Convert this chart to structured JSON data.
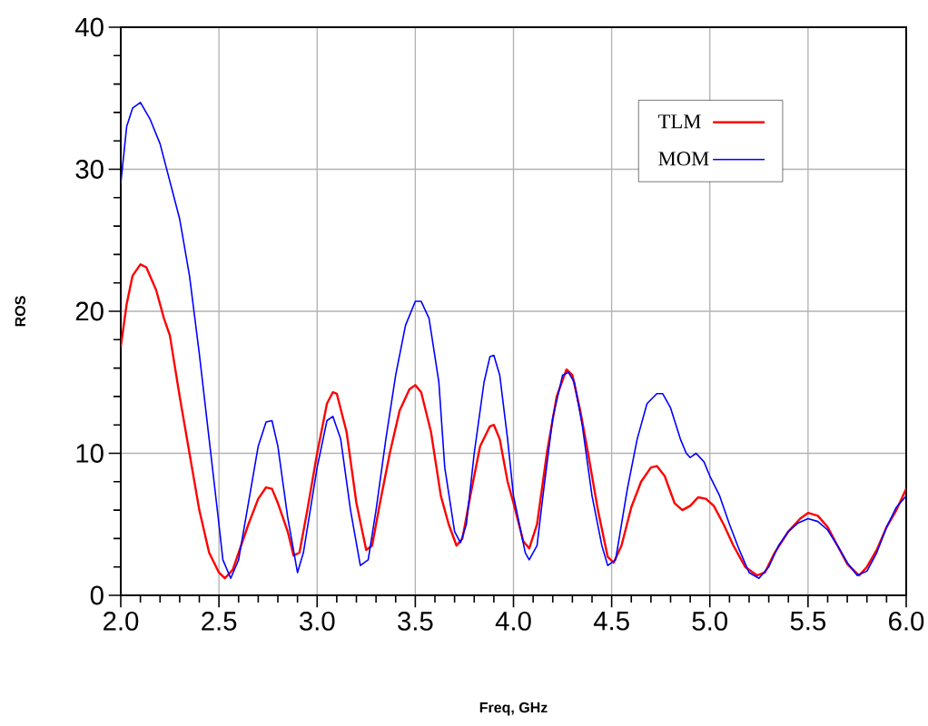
{
  "chart_data": {
    "type": "line",
    "xlabel": "Freq, GHz",
    "ylabel": "ROS",
    "xlim": [
      2.0,
      6.0
    ],
    "ylim": [
      0,
      40
    ],
    "xticks": [
      {
        "value": 2.0,
        "label": "2.0"
      },
      {
        "value": 2.5,
        "label": "2.5"
      },
      {
        "value": 3.0,
        "label": "3.0"
      },
      {
        "value": 3.5,
        "label": "3.5"
      },
      {
        "value": 4.0,
        "label": "4.0"
      },
      {
        "value": 4.5,
        "label": "4.5"
      },
      {
        "value": 5.0,
        "label": "5.0"
      },
      {
        "value": 5.5,
        "label": "5.5"
      },
      {
        "value": 6.0,
        "label": "6.0"
      }
    ],
    "yticks": [
      0,
      10,
      20,
      30,
      40
    ],
    "grid": true,
    "legend": "top right",
    "marker": "none",
    "line_style": "solid",
    "series": [
      {
        "name": "TLM",
        "color": "#ff0000",
        "x": [
          2.0,
          2.03,
          2.06,
          2.1,
          2.13,
          2.18,
          2.22,
          2.25,
          2.3,
          2.35,
          2.4,
          2.45,
          2.5,
          2.53,
          2.57,
          2.6,
          2.65,
          2.7,
          2.74,
          2.77,
          2.8,
          2.85,
          2.88,
          2.91,
          2.95,
          3.0,
          3.05,
          3.08,
          3.1,
          3.15,
          3.2,
          3.25,
          3.28,
          3.32,
          3.37,
          3.42,
          3.47,
          3.5,
          3.53,
          3.58,
          3.63,
          3.67,
          3.71,
          3.74,
          3.78,
          3.83,
          3.88,
          3.9,
          3.93,
          3.97,
          4.0,
          4.05,
          4.08,
          4.12,
          4.17,
          4.22,
          4.27,
          4.3,
          4.34,
          4.38,
          4.43,
          4.48,
          4.51,
          4.55,
          4.6,
          4.65,
          4.7,
          4.73,
          4.77,
          4.82,
          4.86,
          4.9,
          4.94,
          4.98,
          5.02,
          5.07,
          5.12,
          5.18,
          5.24,
          5.28,
          5.33,
          5.4,
          5.46,
          5.5,
          5.55,
          5.6,
          5.65,
          5.7,
          5.76,
          5.8,
          5.85,
          5.9,
          5.95,
          6.0
        ],
        "values": [
          17.5,
          20.5,
          22.5,
          23.3,
          23.1,
          21.5,
          19.5,
          18.3,
          14,
          10,
          6,
          3,
          1.6,
          1.2,
          1.8,
          3,
          5,
          6.8,
          7.6,
          7.5,
          6.5,
          4.5,
          2.8,
          3,
          6,
          10,
          13.5,
          14.3,
          14.2,
          11.5,
          6.5,
          3.2,
          3.5,
          6.5,
          10,
          13,
          14.5,
          14.8,
          14.3,
          11.5,
          7,
          5,
          3.5,
          4,
          7,
          10.5,
          11.9,
          12,
          11,
          8,
          6.5,
          3.8,
          3.3,
          5,
          10,
          14,
          15.9,
          15.5,
          13,
          10,
          6,
          2.7,
          2.3,
          3.5,
          6.2,
          8,
          9,
          9.1,
          8.4,
          6.5,
          6,
          6.3,
          6.9,
          6.8,
          6.3,
          5,
          3.5,
          2,
          1.4,
          1.6,
          3,
          4.5,
          5.4,
          5.8,
          5.6,
          4.8,
          3.5,
          2.2,
          1.4,
          2,
          3.2,
          4.8,
          6,
          7.5
        ]
      },
      {
        "name": "MOM",
        "color": "#0000ff",
        "x": [
          2.0,
          2.03,
          2.06,
          2.1,
          2.15,
          2.2,
          2.3,
          2.35,
          2.4,
          2.45,
          2.5,
          2.52,
          2.56,
          2.6,
          2.65,
          2.7,
          2.74,
          2.77,
          2.8,
          2.85,
          2.9,
          2.93,
          3.0,
          3.05,
          3.08,
          3.12,
          3.17,
          3.22,
          3.26,
          3.3,
          3.35,
          3.4,
          3.45,
          3.5,
          3.53,
          3.57,
          3.62,
          3.65,
          3.7,
          3.73,
          3.76,
          3.8,
          3.85,
          3.88,
          3.9,
          3.93,
          3.97,
          4.0,
          4.06,
          4.08,
          4.12,
          4.15,
          4.2,
          4.25,
          4.28,
          4.31,
          4.35,
          4.4,
          4.45,
          4.48,
          4.52,
          4.58,
          4.63,
          4.68,
          4.73,
          4.76,
          4.8,
          4.85,
          4.88,
          4.9,
          4.93,
          4.97,
          5.0,
          5.05,
          5.1,
          5.15,
          5.2,
          5.25,
          5.3,
          5.35,
          5.4,
          5.45,
          5.5,
          5.55,
          5.6,
          5.65,
          5.7,
          5.75,
          5.8,
          5.85,
          5.9,
          5.95,
          6.0
        ],
        "values": [
          29,
          33,
          34.3,
          34.7,
          33.5,
          31.8,
          26.5,
          22.5,
          17,
          11,
          5,
          2.5,
          1.2,
          2.5,
          6.5,
          10.5,
          12.2,
          12.3,
          10.5,
          5.5,
          1.6,
          3,
          9,
          12.3,
          12.6,
          11,
          6,
          2.1,
          2.5,
          6,
          11,
          15.5,
          19,
          20.7,
          20.7,
          19.5,
          15,
          9,
          4.5,
          3.7,
          5,
          10,
          15,
          16.8,
          16.9,
          15.5,
          11,
          7,
          3,
          2.5,
          3.5,
          7,
          12.5,
          15.5,
          15.7,
          15,
          12,
          7,
          3.5,
          2.1,
          2.5,
          7.5,
          11,
          13.5,
          14.2,
          14.2,
          13.2,
          11,
          10,
          9.7,
          10,
          9.4,
          8.4,
          7,
          5,
          3.2,
          1.6,
          1.2,
          2,
          3.5,
          4.5,
          5.1,
          5.4,
          5.2,
          4.6,
          3.5,
          2.3,
          1.4,
          1.7,
          3,
          4.8,
          6.2,
          7
        ]
      }
    ]
  }
}
